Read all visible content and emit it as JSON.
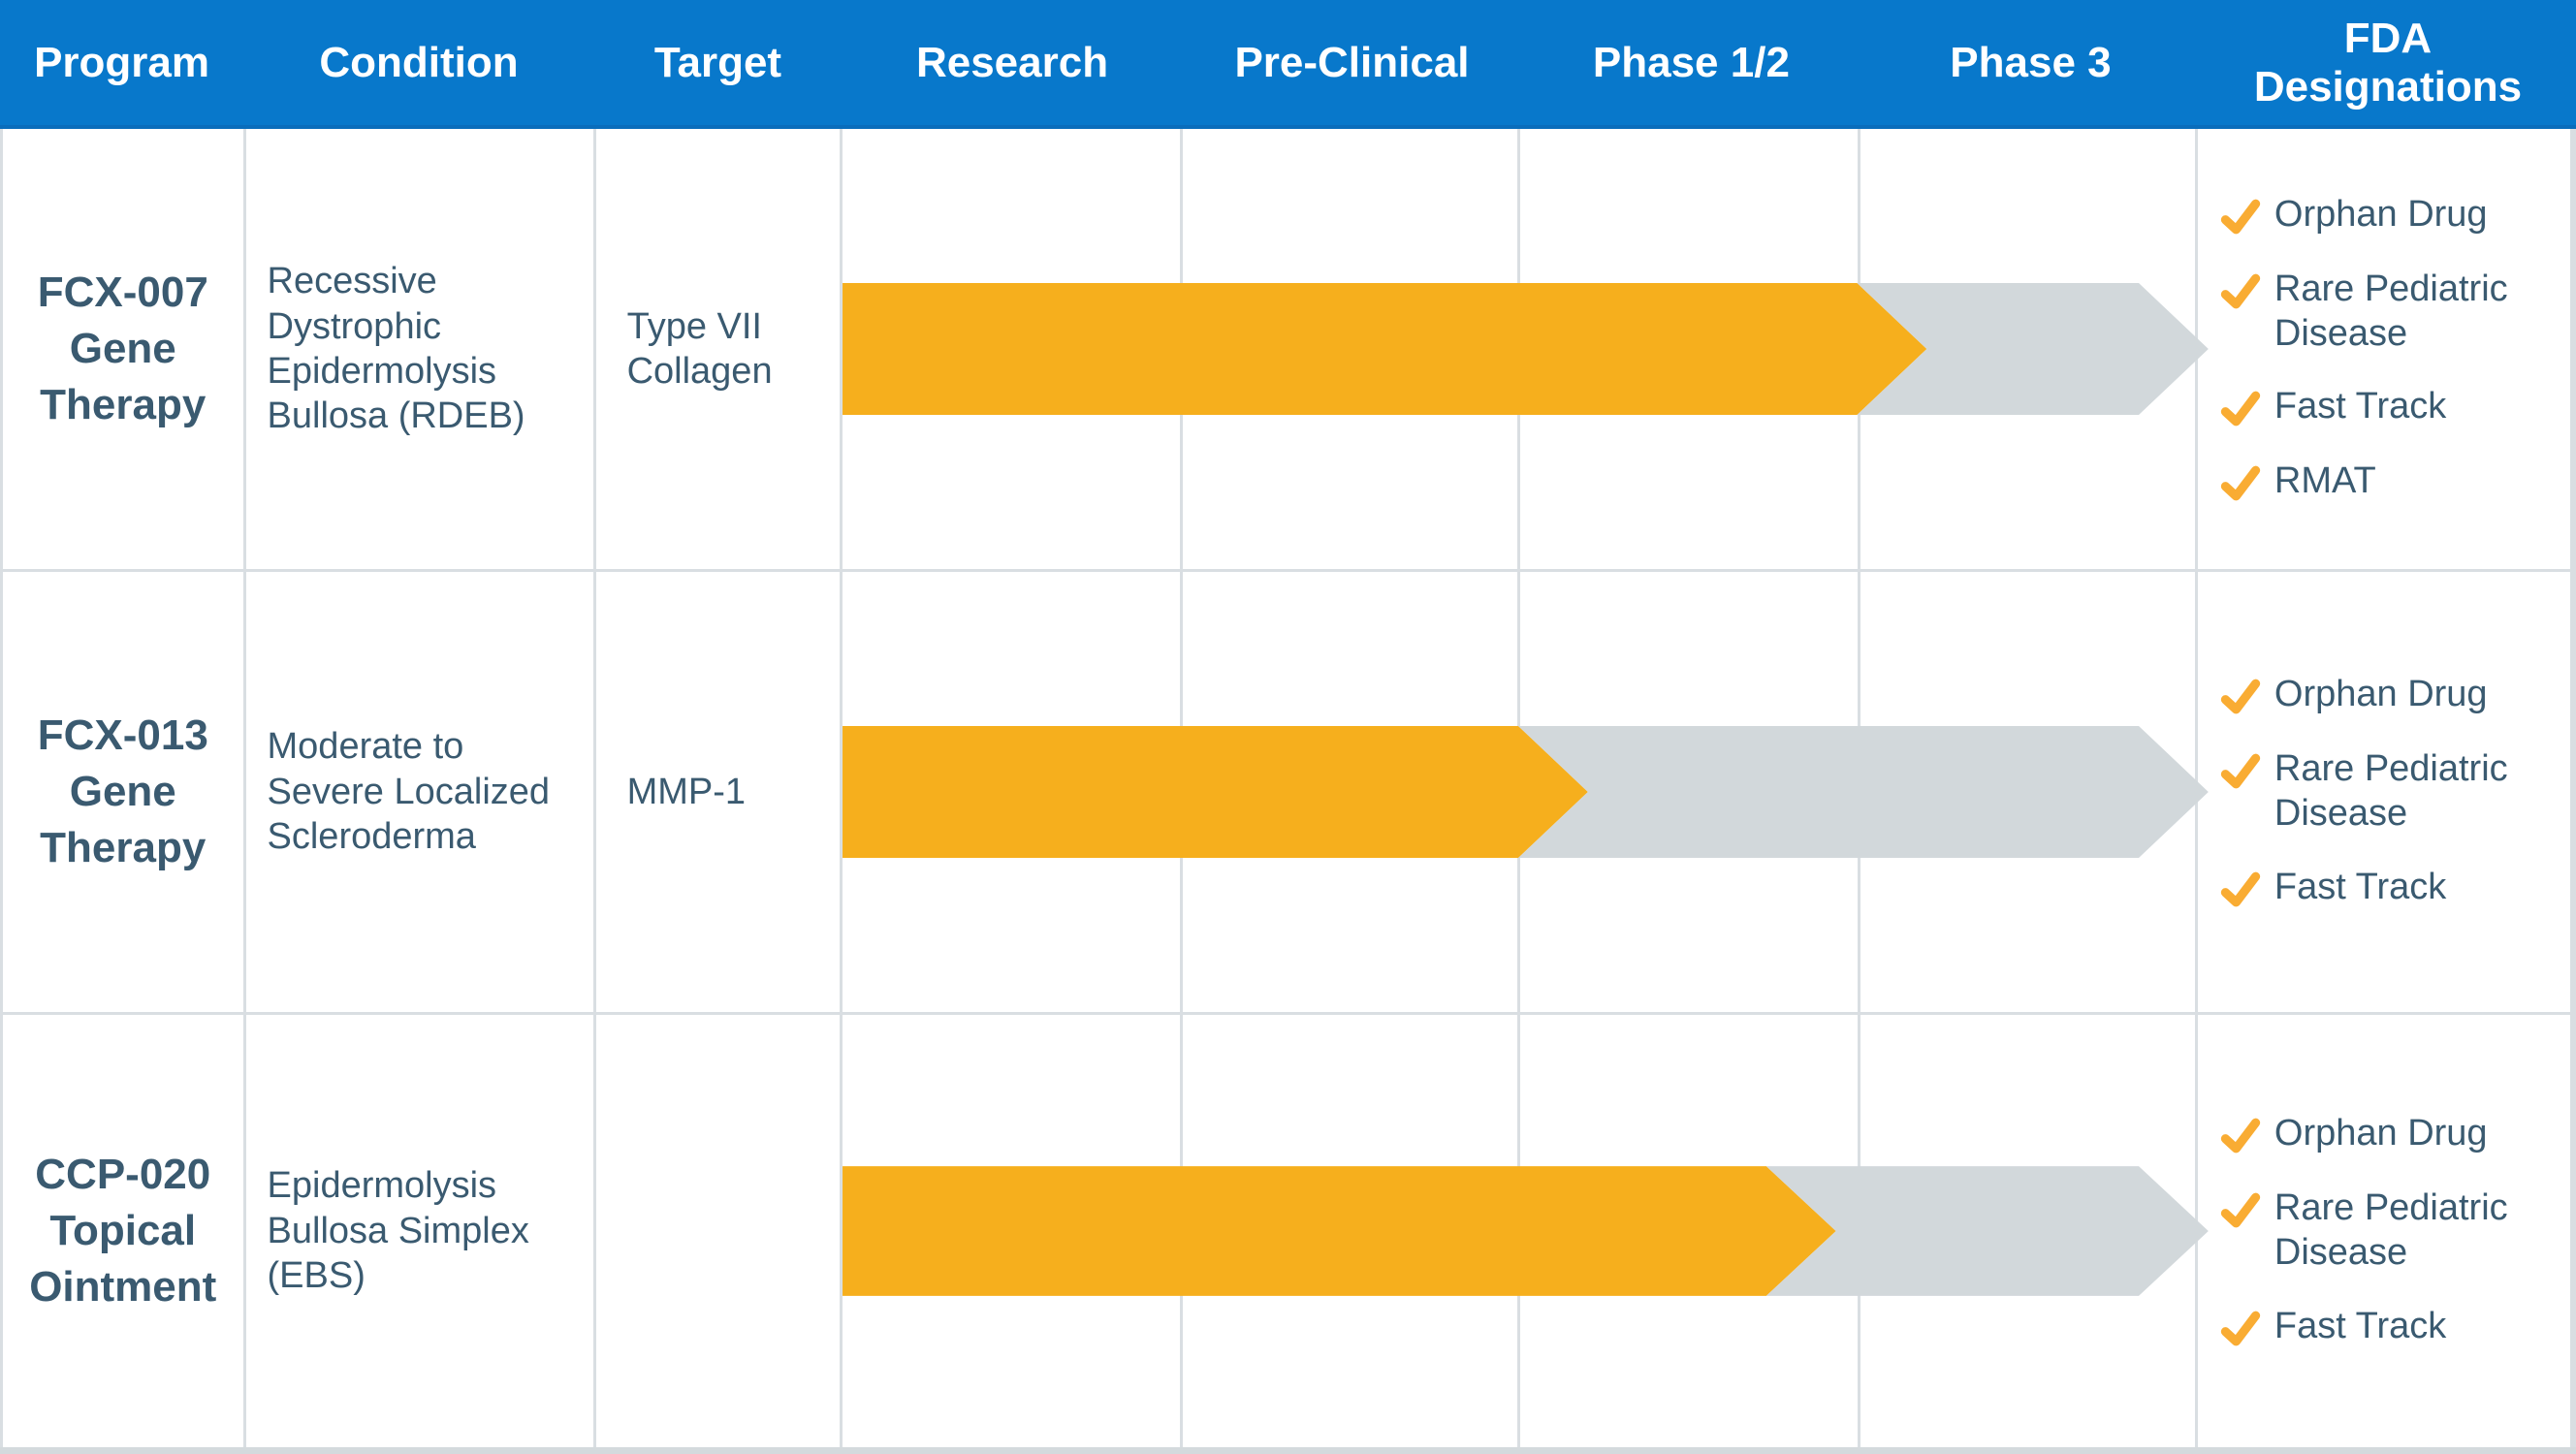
{
  "chart_data": {
    "type": "table",
    "columns": [
      "Program",
      "Condition",
      "Target",
      "Research",
      "Pre-Clinical",
      "Phase 1/2",
      "Phase 3",
      "FDA Designations"
    ],
    "phase_columns": [
      "Research",
      "Pre-Clinical",
      "Phase 1/2",
      "Phase 3"
    ],
    "programs": [
      {
        "name": "FCX-007 Gene Therapy",
        "condition": "Recessive Dystrophic Epidermolysis Bullosa (RDEB)",
        "target": "Type VII Collagen",
        "current_phase": "Phase 3",
        "track_fill_fraction": 0.8,
        "fda_designations": [
          "Orphan Drug",
          "Rare Pediatric Disease",
          "Fast Track",
          "RMAT"
        ]
      },
      {
        "name": "FCX-013 Gene Therapy",
        "condition": "Moderate to Severe Localized Scleroderma",
        "target": "MMP-1",
        "current_phase": "Phase 1/2",
        "track_fill_fraction": 0.55,
        "fda_designations": [
          "Orphan Drug",
          "Rare Pediatric Disease",
          "Fast Track"
        ]
      },
      {
        "name": "CCP-020 Topical Ointment",
        "condition": "Epidermolysis Bullosa Simplex (EBS)",
        "target": "",
        "current_phase": "Phase 1/2",
        "track_fill_fraction": 0.733,
        "fda_designations": [
          "Orphan Drug",
          "Rare Pediatric Disease",
          "Fast Track"
        ]
      }
    ]
  },
  "icons": {
    "designation_check": "✔"
  },
  "colors": {
    "header_blue": "#0878CB",
    "header_blue_dark": "#0A6DBB",
    "text_ink": "#3A5A70",
    "arrow_fill": "#F6AF1D",
    "arrow_track": "#D2D8DB",
    "check": "#F9AC33",
    "gridline": "#D9DEE2",
    "bottom_border": "#D4DADD"
  }
}
